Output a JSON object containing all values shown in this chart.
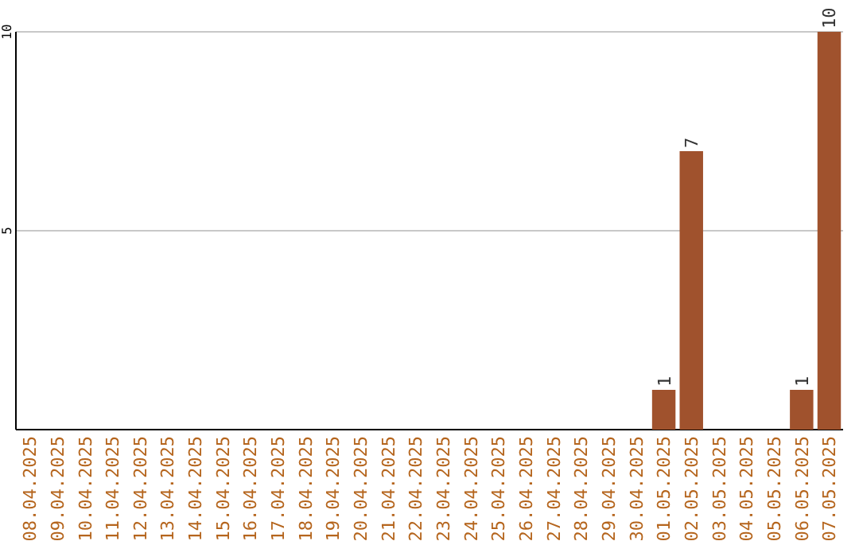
{
  "chart_data": {
    "type": "bar",
    "categories": [
      "08.04.2025",
      "09.04.2025",
      "10.04.2025",
      "11.04.2025",
      "12.04.2025",
      "13.04.2025",
      "14.04.2025",
      "15.04.2025",
      "16.04.2025",
      "17.04.2025",
      "18.04.2025",
      "19.04.2025",
      "20.04.2025",
      "21.04.2025",
      "22.04.2025",
      "23.04.2025",
      "24.04.2025",
      "25.04.2025",
      "26.04.2025",
      "27.04.2025",
      "28.04.2025",
      "29.04.2025",
      "30.04.2025",
      "01.05.2025",
      "02.05.2025",
      "03.05.2025",
      "04.05.2025",
      "05.05.2025",
      "06.05.2025",
      "07.05.2025"
    ],
    "values": [
      0,
      0,
      0,
      0,
      0,
      0,
      0,
      0,
      0,
      0,
      0,
      0,
      0,
      0,
      0,
      0,
      0,
      0,
      0,
      0,
      0,
      0,
      0,
      1,
      7,
      0,
      0,
      0,
      1,
      10
    ],
    "value_labels": [
      null,
      null,
      null,
      null,
      null,
      null,
      null,
      null,
      null,
      null,
      null,
      null,
      null,
      null,
      null,
      null,
      null,
      null,
      null,
      null,
      null,
      null,
      null,
      "1",
      "7",
      null,
      null,
      null,
      "1",
      "10"
    ],
    "color": "#a0522d",
    "ylim": [
      0,
      10
    ],
    "yticks": [
      5,
      10
    ],
    "grid": "y"
  }
}
